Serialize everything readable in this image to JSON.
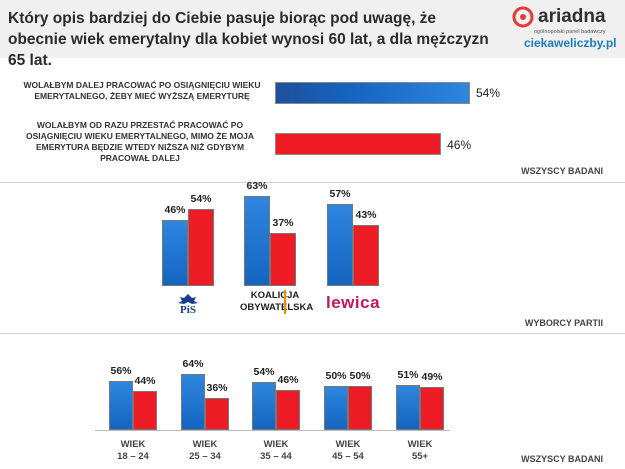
{
  "header": {
    "title": "Który opis bardziej do Ciebie pasuje biorąc pod uwagę, że obecnie wiek emerytalny dla kobiet wynosi 60 lat, a dla mężczyzn 65 lat.",
    "brand": "ariadna",
    "brand_tagline": "ogólnopolski panel badawczy",
    "brand_url": "ciekaweliczby.pl"
  },
  "colors": {
    "blue": "#1565c0",
    "red": "#ee1c25"
  },
  "chart_data": [
    {
      "type": "bar",
      "orientation": "horizontal",
      "section": "WSZYSCY BADANI",
      "categories": [
        "WOLAŁBYM DALEJ PRACOWAĆ PO OSIĄGNIĘCIU WIEKU EMERYTALNEGO, ŻEBY MIEĆ WYŻSZĄ EMERYTURĘ",
        "WOLAŁBYM OD RAZU PRZESTAĆ PRACOWAĆ PO OSIĄGNIĘCIU WIEKU EMERYTALNEGO, MIMO ŻE MOJA EMERYTURA BĘDZIE WTEDY NIŻSZA NIŻ GDYBYM PRACOWAŁ DALEJ"
      ],
      "values": [
        54,
        46
      ],
      "labels": [
        "54%",
        "46%"
      ]
    },
    {
      "type": "bar",
      "section": "WYBORCY PARTII",
      "categories": [
        "PiS",
        "KOALICJA OBYWATELSKA",
        "Lewica"
      ],
      "logo_texts": {
        "pis": "PiS",
        "ko_line1": "KOALICJA",
        "ko_line2": "OBYWATELSKA",
        "lewica": "lewica"
      },
      "series": [
        {
          "name": "Dalej pracować",
          "values": [
            46,
            63,
            57
          ],
          "labels": [
            "46%",
            "63%",
            "57%"
          ]
        },
        {
          "name": "Przestać pracować",
          "values": [
            54,
            37,
            43
          ],
          "labels": [
            "54%",
            "37%",
            "43%"
          ]
        }
      ]
    },
    {
      "type": "bar",
      "section": "WSZYSCY BADANI",
      "categories": [
        "18 – 24",
        "25 – 34",
        "35 – 44",
        "45 – 54",
        "55+"
      ],
      "category_prefix": "WIEK",
      "series": [
        {
          "name": "Dalej pracować",
          "values": [
            56,
            64,
            54,
            50,
            51
          ],
          "labels": [
            "56%",
            "64%",
            "54%",
            "50%",
            "51%"
          ]
        },
        {
          "name": "Przestać pracować",
          "values": [
            44,
            36,
            46,
            50,
            49
          ],
          "labels": [
            "44%",
            "36%",
            "46%",
            "50%",
            "49%"
          ]
        }
      ]
    }
  ]
}
